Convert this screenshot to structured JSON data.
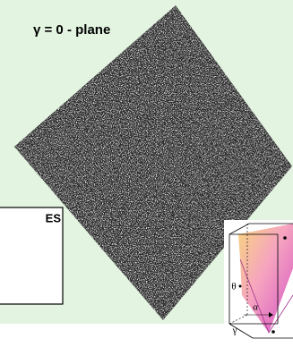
{
  "title": "γ = 0 - plane",
  "side_box": {
    "label": "ES"
  },
  "inset": {
    "theta_label": "θ",
    "alpha_label": "α",
    "gamma_label": "γ"
  }
}
